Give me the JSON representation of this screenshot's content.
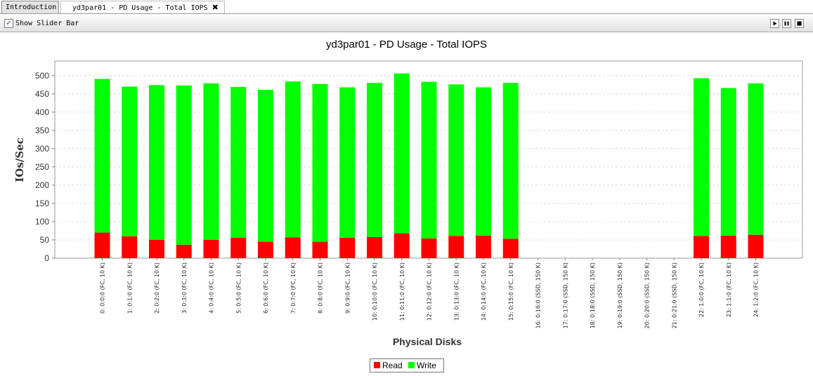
{
  "tabs": [
    {
      "label": "Introduction",
      "active": false
    },
    {
      "label": "yd3par01 - PD Usage - Total IOPS",
      "active": true
    }
  ],
  "toolbar": {
    "show_slider_label": "Show Slider Bar",
    "show_slider_checked": true,
    "controls": [
      "play-icon",
      "pause-icon",
      "stop-icon"
    ]
  },
  "chart_data": {
    "type": "bar",
    "stacked": true,
    "title": "yd3par01 - PD Usage - Total IOPS",
    "xlabel": "Physical Disks",
    "ylabel": "IOs/Sec",
    "ylim": [
      0,
      540
    ],
    "yticks": [
      0,
      50,
      100,
      150,
      200,
      250,
      300,
      350,
      400,
      450,
      500
    ],
    "grid": true,
    "legend_position": "bottom-center",
    "categories": [
      "0: 0:0:0 (FC, 10 K)",
      "1: 0:1:0 (FC, 10 K)",
      "2: 0:2:0 (FC, 10 K)",
      "3: 0:3:0 (FC, 10 K)",
      "4: 0:4:0 (FC, 10 K)",
      "5: 0:5:0 (FC, 10 K)",
      "6: 0:6:0 (FC, 10 K)",
      "7: 0:7:0 (FC, 10 K)",
      "8: 0:8:0 (FC, 10 K)",
      "9: 0:9:0 (FC, 10 K)",
      "10: 0:10:0 (FC, 10 K)",
      "11: 0:11:0 (FC, 10 K)",
      "12: 0:12:0 (FC, 10 K)",
      "13: 0:13:0 (FC, 10 K)",
      "14: 0:14:0 (FC, 10 K)",
      "15: 0:15:0 (FC, 10 K)",
      "16: 0:16:0 (SSD, 150 K)",
      "17: 0:17:0 (SSD, 150 K)",
      "18: 0:18:0 (SSD, 150 K)",
      "19: 0:19:0 (SSD, 150 K)",
      "20: 0:20:0 (SSD, 150 K)",
      "21: 0:21:0 (SSD, 150 K)",
      "22: 1:0:0 (FC, 10 K)",
      "23: 1:1:0 (FC, 10 K)",
      "24: 1:2:0 (FC, 10 K)"
    ],
    "series": [
      {
        "name": "Read",
        "color": "#ff0000",
        "values": [
          70,
          60,
          50,
          37,
          50,
          56,
          45,
          57,
          45,
          56,
          58,
          68,
          54,
          61,
          62,
          53,
          0,
          0,
          0,
          0,
          0,
          0,
          61,
          62,
          64
        ]
      },
      {
        "name": "Write",
        "color": "#00ff00",
        "values": [
          421,
          410,
          424,
          436,
          429,
          413,
          416,
          427,
          432,
          412,
          422,
          438,
          429,
          415,
          406,
          427,
          0,
          0,
          0,
          0,
          0,
          0,
          432,
          404,
          415
        ]
      }
    ]
  }
}
